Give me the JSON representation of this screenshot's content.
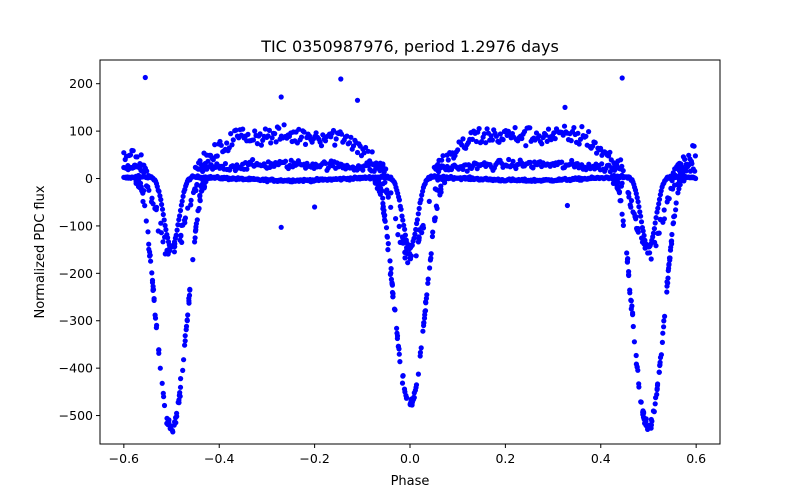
{
  "chart_data": {
    "type": "scatter",
    "title": "TIC 0350987976, period 1.2976 days",
    "xlabel": "Phase",
    "ylabel": "Normalized PDC flux",
    "xlim": [
      -0.65,
      0.65
    ],
    "ylim": [
      -560,
      250
    ],
    "xticks": [
      -0.6,
      -0.4,
      -0.2,
      0.0,
      0.2,
      0.4,
      0.6
    ],
    "xtick_labels": [
      "−0.6",
      "−0.4",
      "−0.2",
      "0.0",
      "0.2",
      "0.4",
      "0.6"
    ],
    "yticks": [
      200,
      100,
      0,
      -100,
      -200,
      -300,
      -400,
      -500
    ],
    "ytick_labels": [
      "200",
      "100",
      "0",
      "−100",
      "−200",
      "−300",
      "−400",
      "−500"
    ],
    "grid": false,
    "legend": "none",
    "marker_color": "#0000ff",
    "phase_range": [
      -0.6,
      0.6
    ],
    "primary_eclipses": [
      {
        "center": -0.5,
        "min_depth": -525,
        "shallow_depth": -150
      },
      {
        "center": 0.0,
        "min_depth": -475,
        "shallow_depth": -150
      },
      {
        "center": 0.5,
        "min_depth": -525,
        "shallow_depth": -150
      }
    ],
    "out_of_eclipse_levels": [
      0,
      20,
      80
    ],
    "outliers": [
      {
        "x": -0.555,
        "y": 213
      },
      {
        "x": -0.27,
        "y": 172
      },
      {
        "x": -0.145,
        "y": 210
      },
      {
        "x": -0.11,
        "y": 165
      },
      {
        "x": 0.445,
        "y": 212
      },
      {
        "x": 0.325,
        "y": 150
      },
      {
        "x": -0.27,
        "y": -103
      },
      {
        "x": -0.2,
        "y": -60
      },
      {
        "x": 0.33,
        "y": -57
      }
    ]
  }
}
